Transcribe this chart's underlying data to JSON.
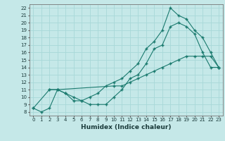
{
  "title": "",
  "xlabel": "Humidex (Indice chaleur)",
  "bg_color": "#c5e8e8",
  "grid_color": "#a8d8d8",
  "line_color": "#1a7a6e",
  "xlim": [
    -0.5,
    23.5
  ],
  "ylim": [
    7.5,
    22.5
  ],
  "xticks": [
    0,
    1,
    2,
    3,
    4,
    5,
    6,
    7,
    8,
    9,
    10,
    11,
    12,
    13,
    14,
    15,
    16,
    17,
    18,
    19,
    20,
    21,
    22,
    23
  ],
  "yticks": [
    8,
    9,
    10,
    11,
    12,
    13,
    14,
    15,
    16,
    17,
    18,
    19,
    20,
    21,
    22
  ],
  "line1_x": [
    0,
    1,
    2,
    3,
    4,
    5,
    6,
    7,
    8,
    9,
    10,
    11,
    12,
    13,
    14,
    15,
    16,
    17,
    18,
    19,
    20,
    21,
    22,
    23
  ],
  "line1_y": [
    8.5,
    8.0,
    8.5,
    11.0,
    10.5,
    9.5,
    9.5,
    9.0,
    9.0,
    9.0,
    10.0,
    11.0,
    12.5,
    13.0,
    14.5,
    16.5,
    17.0,
    19.5,
    20.0,
    19.5,
    18.5,
    16.0,
    14.0,
    14.0
  ],
  "line2_x": [
    2,
    3,
    4,
    5,
    6,
    7,
    8,
    9,
    10,
    11,
    12,
    13,
    14,
    15,
    16,
    17,
    18,
    19,
    20,
    21,
    22,
    23
  ],
  "line2_y": [
    11.0,
    11.0,
    10.5,
    10.0,
    9.5,
    10.0,
    10.5,
    11.5,
    12.0,
    12.5,
    13.5,
    14.5,
    16.5,
    17.5,
    19.0,
    22.0,
    21.0,
    20.5,
    19.0,
    18.0,
    16.0,
    14.0
  ],
  "line3_x": [
    0,
    2,
    3,
    10,
    11,
    12,
    13,
    14,
    15,
    16,
    17,
    18,
    19,
    20,
    21,
    22,
    23
  ],
  "line3_y": [
    8.5,
    11.0,
    11.0,
    11.5,
    11.5,
    12.0,
    12.5,
    13.0,
    13.5,
    14.0,
    14.5,
    15.0,
    15.5,
    15.5,
    15.5,
    15.5,
    14.0
  ],
  "marker": "+",
  "markersize": 3,
  "linewidth": 0.8,
  "tick_fontsize": 5,
  "xlabel_fontsize": 6.5
}
